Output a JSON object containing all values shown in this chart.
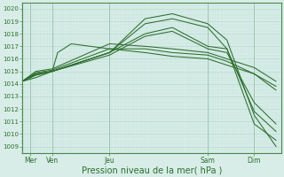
{
  "background_color": "#cce8e0",
  "plot_bg_color": "#d8ede8",
  "grid_color_major": "#b0d4cc",
  "grid_color_minor": "#c4e2da",
  "line_color": "#2d6e2d",
  "ylim": [
    1008.5,
    1020.5
  ],
  "xlim": [
    0,
    9.5
  ],
  "xlabel": "Pression niveau de la mer( hPa )",
  "xlabel_fontsize": 7,
  "ytick_labels": [
    "1009",
    "1010",
    "1011",
    "1012",
    "1013",
    "1014",
    "1015",
    "1016",
    "1017",
    "1018",
    "1019",
    "1020"
  ],
  "ytick_vals": [
    1009,
    1010,
    1011,
    1012,
    1013,
    1014,
    1015,
    1016,
    1017,
    1018,
    1019,
    1020
  ],
  "xtick_positions": [
    0.3,
    1.1,
    3.2,
    6.8,
    8.5
  ],
  "xtick_labels": [
    "Mer",
    "Ven",
    "Jeu",
    "Sam",
    "Dim"
  ],
  "vline_positions": [
    0.3,
    1.1,
    3.2,
    6.8,
    8.5
  ],
  "lines": [
    {
      "x": [
        0.0,
        0.5,
        1.1,
        3.2,
        4.5,
        5.5,
        6.8,
        7.5,
        8.5,
        9.3
      ],
      "y": [
        1014.2,
        1014.8,
        1015.0,
        1016.5,
        1019.2,
        1019.6,
        1018.8,
        1017.5,
        1011.5,
        1009.0
      ]
    },
    {
      "x": [
        0.0,
        0.5,
        1.1,
        3.2,
        4.5,
        5.5,
        6.8,
        7.5,
        8.5,
        9.3
      ],
      "y": [
        1014.2,
        1014.8,
        1015.0,
        1016.5,
        1018.8,
        1019.2,
        1018.5,
        1016.8,
        1010.8,
        1009.5
      ]
    },
    {
      "x": [
        0.0,
        0.5,
        1.1,
        3.2,
        4.5,
        5.5,
        6.8,
        7.5,
        8.5,
        9.3
      ],
      "y": [
        1014.2,
        1014.7,
        1015.0,
        1016.3,
        1017.8,
        1018.2,
        1016.8,
        1016.5,
        1012.5,
        1010.8
      ]
    },
    {
      "x": [
        0.0,
        0.5,
        1.1,
        3.2,
        4.5,
        5.5,
        6.8,
        7.5,
        8.5,
        9.3
      ],
      "y": [
        1014.2,
        1014.7,
        1015.0,
        1016.5,
        1018.0,
        1018.5,
        1017.0,
        1016.8,
        1011.8,
        1010.2
      ]
    },
    {
      "x": [
        0.0,
        0.5,
        1.1,
        3.2,
        4.5,
        5.5,
        6.8,
        7.5,
        8.5,
        9.3
      ],
      "y": [
        1014.2,
        1014.9,
        1015.1,
        1016.8,
        1016.8,
        1016.5,
        1016.3,
        1015.8,
        1014.8,
        1013.5
      ]
    },
    {
      "x": [
        0.0,
        0.5,
        1.1,
        3.2,
        4.5,
        5.5,
        6.8,
        7.5,
        8.5,
        9.3
      ],
      "y": [
        1014.2,
        1015.0,
        1015.2,
        1017.2,
        1017.0,
        1016.8,
        1016.5,
        1016.0,
        1015.3,
        1014.2
      ]
    },
    {
      "x": [
        0.0,
        0.5,
        1.1,
        1.3,
        1.8,
        3.2,
        4.5,
        5.5,
        6.8,
        7.5,
        8.5,
        9.3
      ],
      "y": [
        1014.2,
        1014.5,
        1015.0,
        1016.5,
        1017.2,
        1016.8,
        1016.5,
        1016.2,
        1016.0,
        1015.5,
        1014.8,
        1013.8
      ]
    }
  ]
}
